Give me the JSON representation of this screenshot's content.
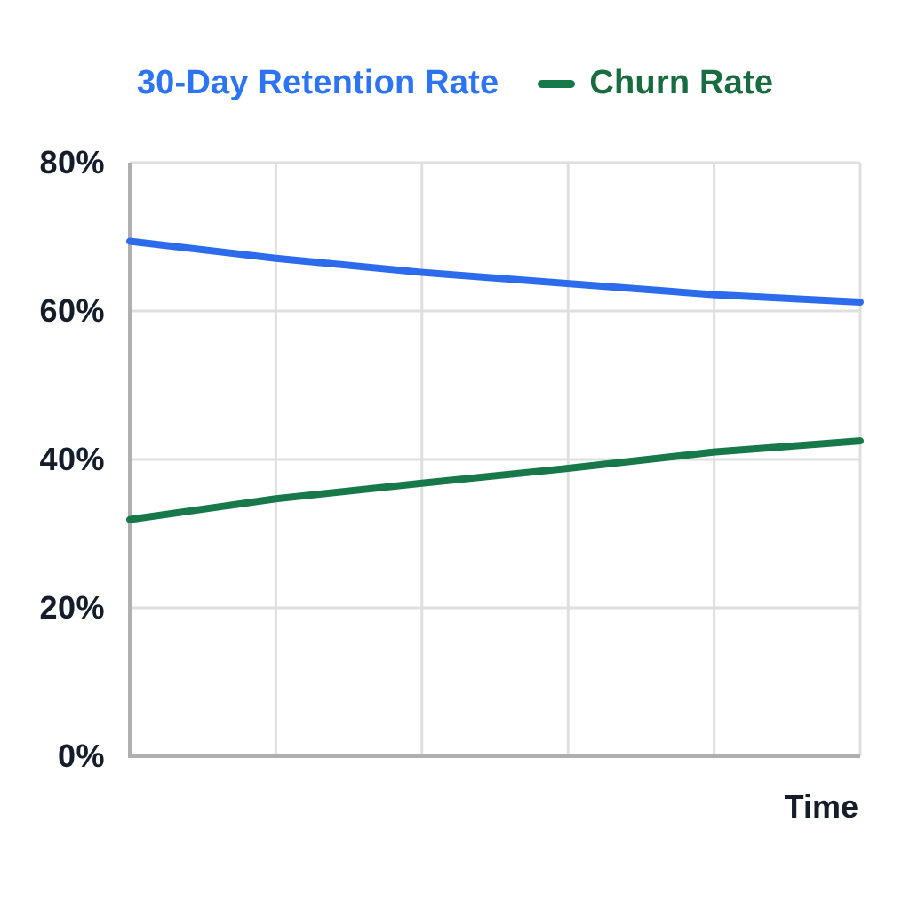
{
  "legend": {
    "retention_label": "30-Day Retention Rate",
    "retention_color": "#2D74F2",
    "churn_label": "Churn Rate",
    "churn_color": "#186C3F",
    "churn_dash_color": "#17794A"
  },
  "chart_data": {
    "type": "line",
    "x": [
      0,
      1,
      2,
      3,
      4,
      5
    ],
    "x_tick_labels_visible": false,
    "series": [
      {
        "name": "30-Day Retention Rate",
        "color": "#2C6BEB",
        "stroke_width": 8,
        "values": [
          69.4,
          67.1,
          65.2,
          63.7,
          62.2,
          61.2
        ]
      },
      {
        "name": "Churn Rate",
        "color": "#17794A",
        "stroke_width": 8,
        "values": [
          31.9,
          34.7,
          36.8,
          38.8,
          41.0,
          42.5
        ]
      }
    ],
    "title": "",
    "xlabel": "Time",
    "ylabel": "",
    "ylim": [
      0,
      80
    ],
    "ytick_values": [
      80,
      60,
      40,
      20,
      0
    ],
    "ytick_labels": [
      "80%",
      "60%",
      "40%",
      "20%",
      "0%"
    ],
    "grid": true,
    "legend_position": "top"
  },
  "style": {
    "text_color": "#141D29",
    "grid_color": "#DFDFDF",
    "axis_color": "#AFAFAF",
    "background": "#FFFFFF"
  }
}
